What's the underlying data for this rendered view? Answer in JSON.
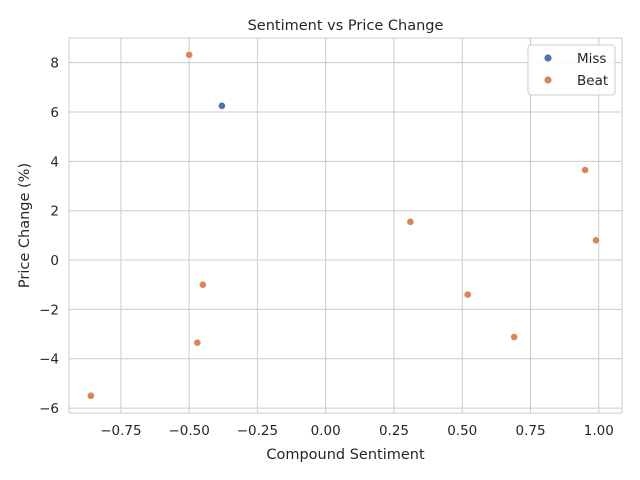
{
  "chart_data": {
    "type": "scatter",
    "title": "Sentiment vs Price Change",
    "xlabel": "Compound Sentiment",
    "ylabel": "Price Change (%)",
    "xlim": [
      -0.94,
      1.085
    ],
    "ylim": [
      -6.2,
      9.0
    ],
    "xticks": [
      -0.75,
      -0.5,
      -0.25,
      0.0,
      0.25,
      0.5,
      0.75,
      1.0
    ],
    "xtick_labels": [
      "−0.75",
      "−0.50",
      "−0.25",
      "0.00",
      "0.25",
      "0.50",
      "0.75",
      "1.00"
    ],
    "yticks": [
      -6,
      -4,
      -2,
      0,
      2,
      4,
      6,
      8
    ],
    "ytick_labels": [
      "−6",
      "−4",
      "−2",
      "0",
      "2",
      "4",
      "6",
      "8"
    ],
    "grid": true,
    "legend_position": "top-right",
    "series": [
      {
        "name": "Miss",
        "color": "#4c72b0",
        "points": [
          {
            "x": -0.38,
            "y": 6.25
          }
        ]
      },
      {
        "name": "Beat",
        "color": "#dd8452",
        "points": [
          {
            "x": -0.5,
            "y": 8.32
          },
          {
            "x": 0.31,
            "y": 1.55
          },
          {
            "x": 0.95,
            "y": 3.65
          },
          {
            "x": 0.99,
            "y": 0.8
          },
          {
            "x": -0.45,
            "y": -1.0
          },
          {
            "x": 0.52,
            "y": -1.4
          },
          {
            "x": -0.47,
            "y": -3.35
          },
          {
            "x": 0.69,
            "y": -3.12
          },
          {
            "x": -0.86,
            "y": -5.5
          }
        ]
      }
    ]
  }
}
